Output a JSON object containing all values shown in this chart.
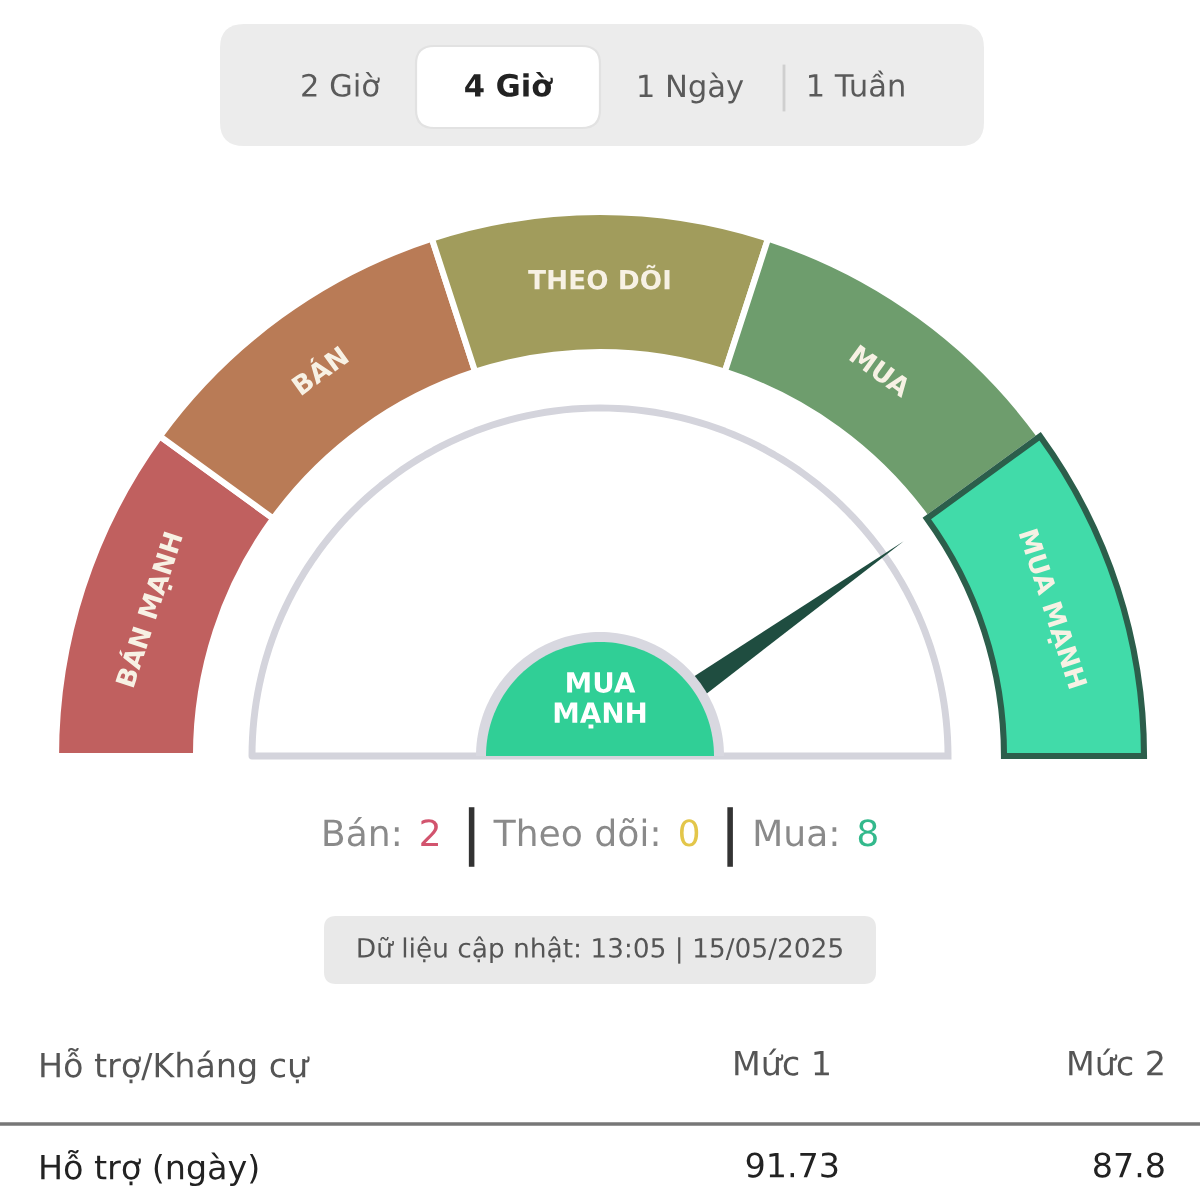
{
  "chart_data": {
    "type": "donut",
    "categories": [
      "BÁN MẠNH",
      "BÁN",
      "THEO DÕI",
      "MUA",
      "MUA MẠNH"
    ],
    "values": [
      20,
      20,
      20,
      20,
      20
    ],
    "colors": [
      "#c0605f",
      "#b97b56",
      "#a19c5c",
      "#6e9d6d",
      "#41dba9"
    ],
    "needle": "MUA MẠNH",
    "annotations": [
      "2 Giờ",
      "4 Giờ",
      "1 Ngày",
      "1 Tuần",
      "MUA\nMẠNH",
      "Bán:",
      "2",
      "Theo dõi:",
      "0",
      "Mua:",
      "8",
      "Dữ liệu cập nhật: 13:05 | 15/05/2025",
      "Hỗ trợ/Kháng cự",
      "Mức 1",
      "Mức 2",
      "Hỗ trợ (ngày)",
      "91.73",
      "87.8"
    ]
  }
}
